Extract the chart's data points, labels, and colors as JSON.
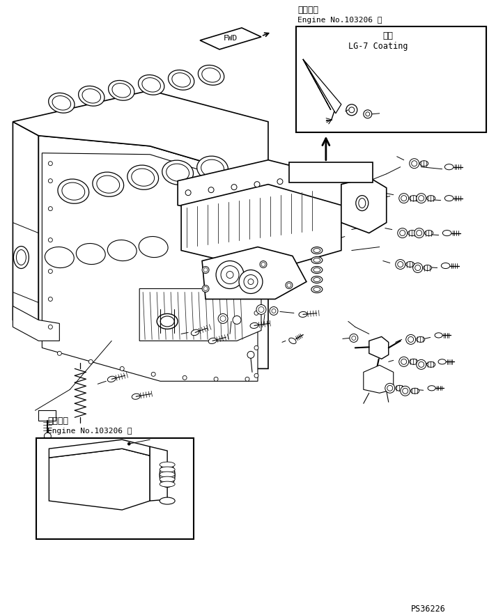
{
  "bg_color": "#ffffff",
  "line_color": "#000000",
  "lw_main": 1.2,
  "lw_thin": 0.7,
  "lw_med": 1.0,
  "part_number": "PS36226",
  "top_right_label1": "適用号機",
  "top_right_label2": "Engine No.103206 ～",
  "coating_label1": "塗布",
  "coating_label2": "LG-7 Coating",
  "bottom_left_label1": "適用号機",
  "bottom_left_label2": "Engine No.103206 ～",
  "fwd_label": "FWD"
}
